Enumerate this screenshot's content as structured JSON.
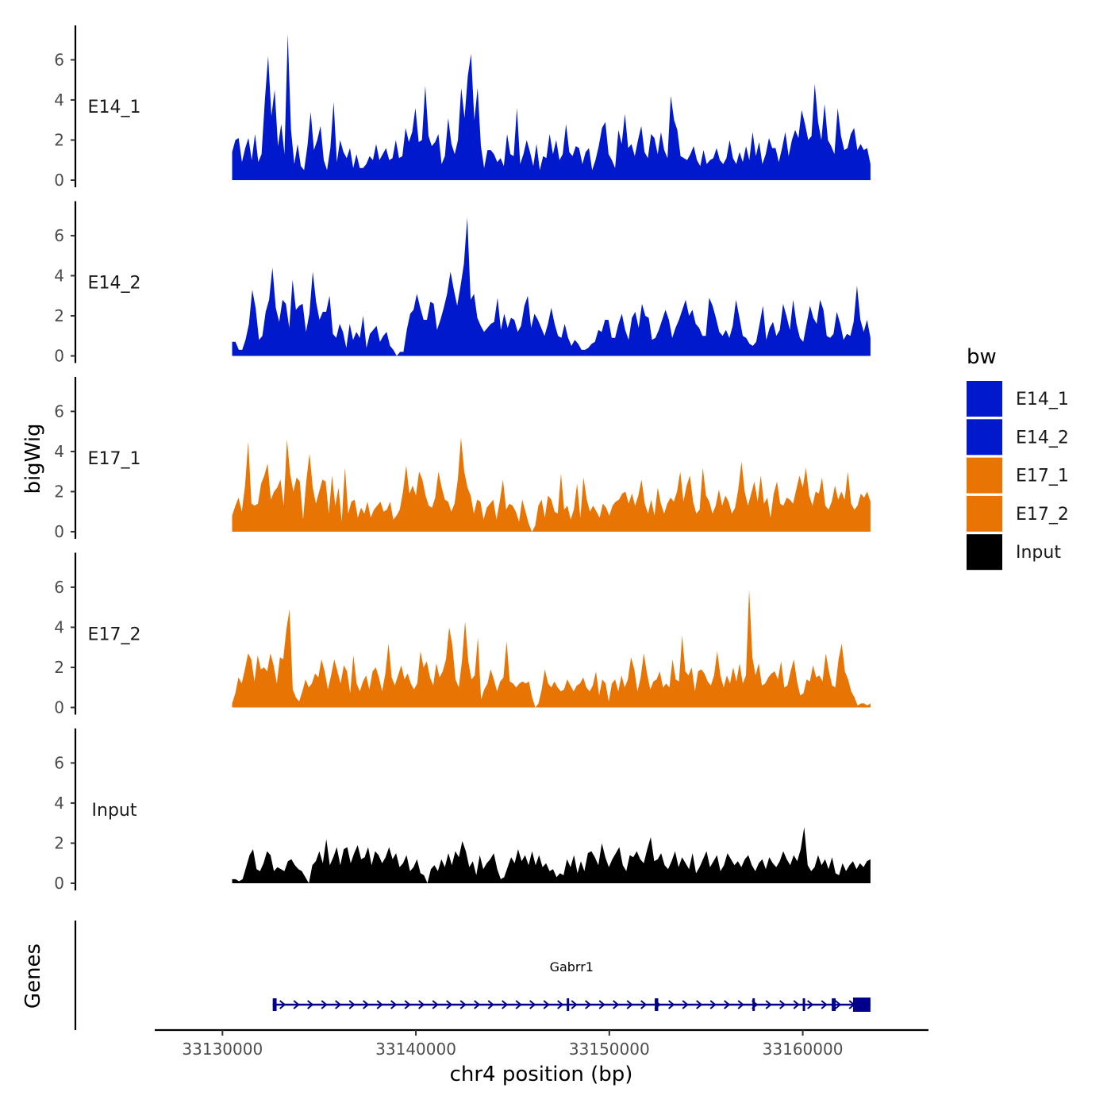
{
  "chart_data": {
    "type": "area",
    "description_title": "",
    "xlabel": "chr4 position (bp)",
    "ylabel": "bigWig",
    "genes_label": "Genes",
    "xlim": [
      33126500,
      33166500
    ],
    "ylim": [
      0,
      7.6
    ],
    "x_ticks": [
      33130000,
      33140000,
      33150000,
      33160000
    ],
    "y_ticks": [
      0,
      2,
      4,
      6
    ],
    "region": [
      33130500,
      33163500
    ],
    "series": [
      {
        "name": "E14_1",
        "color": "#0119CC",
        "values": [
          1.4,
          2.0,
          2.1,
          0.9,
          1.6,
          2.1,
          1.0,
          2.3,
          0.9,
          1.3,
          4.0,
          6.2,
          3.2,
          4.5,
          1.7,
          2.8,
          1.3,
          7.3,
          2.5,
          0.8,
          1.8,
          0.7,
          0.5,
          1.7,
          3.4,
          1.5,
          2.0,
          2.7,
          1.0,
          0.5,
          1.6,
          3.9,
          0.9,
          2.0,
          1.4,
          1.1,
          1.6,
          0.6,
          1.3,
          0.6,
          0.6,
          0.8,
          1.2,
          1.0,
          1.8,
          1.0,
          1.3,
          1.6,
          1.0,
          1.1,
          2.0,
          1.1,
          1.2,
          2.6,
          1.9,
          2.4,
          3.6,
          1.9,
          2.0,
          4.7,
          2.2,
          1.7,
          1.9,
          2.3,
          0.8,
          1.2,
          3.1,
          1.8,
          1.3,
          2.0,
          4.6,
          3.1,
          5.2,
          6.3,
          3.0,
          4.6,
          1.7,
          0.6,
          1.5,
          1.5,
          1.3,
          0.9,
          1.1,
          0.7,
          2.3,
          1.3,
          1.2,
          3.6,
          0.8,
          1.3,
          2.0,
          1.4,
          0.7,
          1.8,
          0.5,
          1.2,
          1.1,
          2.3,
          1.3,
          2.0,
          1.0,
          1.3,
          2.8,
          1.4,
          1.2,
          1.7,
          1.6,
          0.8,
          1.4,
          1.6,
          0.5,
          1.0,
          1.7,
          2.6,
          2.9,
          1.3,
          1.0,
          0.6,
          2.5,
          1.8,
          3.3,
          1.6,
          1.8,
          1.2,
          2.0,
          2.7,
          1.4,
          1.1,
          2.3,
          2.1,
          1.3,
          2.4,
          1.5,
          1.1,
          4.2,
          3.0,
          2.5,
          1.2,
          1.1,
          1.0,
          1.3,
          1.7,
          1.0,
          0.7,
          1.5,
          0.8,
          1.0,
          1.1,
          1.6,
          1.0,
          0.8,
          1.1,
          2.0,
          1.1,
          0.8,
          1.4,
          0.9,
          1.7,
          1.0,
          2.4,
          1.2,
          1.9,
          0.8,
          1.3,
          2.1,
          1.6,
          1.6,
          0.9,
          1.6,
          2.4,
          1.2,
          2.0,
          2.5,
          2.1,
          3.5,
          2.8,
          2.0,
          2.2,
          4.8,
          2.9,
          2.0,
          3.8,
          2.0,
          1.7,
          1.3,
          3.6,
          2.2,
          1.5,
          1.6,
          2.3,
          2.6,
          1.5,
          1.8,
          1.5,
          1.6,
          0.8
        ]
      },
      {
        "name": "E14_2",
        "color": "#0119CC",
        "values": [
          0.7,
          0.7,
          0.3,
          0.3,
          0.8,
          1.6,
          3.3,
          2.4,
          0.8,
          1.0,
          2.2,
          2.8,
          4.4,
          2.4,
          1.7,
          2.8,
          2.6,
          1.4,
          3.8,
          2.3,
          2.5,
          2.6,
          1.2,
          2.1,
          4.2,
          2.7,
          1.8,
          2.2,
          2.2,
          3.0,
          1.1,
          0.9,
          1.6,
          1.2,
          0.4,
          1.6,
          0.8,
          1.2,
          0.9,
          2.0,
          0.4,
          1.1,
          1.3,
          1.5,
          0.7,
          1.0,
          1.2,
          0.5,
          0.3,
          0.0,
          0.2,
          0.2,
          1.3,
          2.1,
          2.3,
          3.1,
          2.4,
          1.8,
          1.8,
          2.7,
          2.6,
          1.3,
          1.8,
          2.4,
          3.1,
          4.2,
          3.3,
          2.5,
          3.5,
          4.6,
          6.9,
          2.8,
          3.1,
          1.9,
          1.5,
          1.2,
          1.4,
          1.6,
          1.7,
          2.9,
          1.3,
          2.1,
          1.4,
          1.9,
          1.8,
          1.2,
          1.5,
          2.5,
          3.0,
          1.4,
          2.1,
          1.8,
          1.4,
          1.0,
          1.6,
          2.4,
          1.6,
          1.0,
          0.9,
          1.6,
          0.9,
          0.5,
          0.8,
          0.6,
          0.3,
          0.3,
          0.4,
          0.6,
          0.7,
          1.3,
          1.2,
          1.8,
          1.8,
          0.9,
          0.9,
          1.6,
          2.1,
          1.3,
          0.8,
          1.9,
          2.2,
          1.4,
          2.6,
          2.0,
          1.9,
          0.8,
          0.9,
          1.3,
          1.8,
          2.3,
          1.8,
          0.9,
          1.4,
          1.8,
          2.3,
          2.8,
          2.0,
          2.3,
          1.6,
          1.4,
          1.0,
          1.0,
          2.9,
          2.5,
          1.9,
          1.2,
          1.0,
          1.3,
          0.9,
          1.5,
          2.8,
          1.9,
          1.0,
          0.9,
          0.6,
          0.5,
          0.7,
          1.6,
          2.5,
          0.8,
          1.4,
          1.7,
          1.0,
          1.3,
          2.6,
          2.0,
          1.3,
          2.8,
          1.6,
          0.9,
          0.7,
          1.6,
          2.5,
          1.9,
          1.6,
          2.8,
          2.3,
          1.0,
          0.9,
          1.1,
          2.2,
          1.6,
          0.8,
          1.1,
          1.0,
          1.7,
          3.5,
          1.8,
          1.2,
          1.8,
          0.9
        ]
      },
      {
        "name": "E17_1",
        "color": "#E87503",
        "values": [
          0.8,
          1.3,
          1.7,
          1.0,
          2.3,
          4.5,
          1.4,
          1.3,
          1.4,
          2.4,
          2.8,
          3.4,
          1.6,
          2.0,
          2.2,
          2.6,
          1.3,
          4.6,
          2.9,
          2.0,
          2.7,
          2.5,
          0.6,
          2.5,
          3.9,
          2.2,
          1.4,
          2.0,
          2.6,
          2.5,
          0.9,
          2.8,
          1.3,
          2.2,
          0.5,
          3.2,
          0.9,
          1.5,
          1.6,
          0.7,
          1.2,
          0.9,
          1.5,
          0.7,
          1.1,
          1.3,
          1.5,
          1.0,
          1.1,
          1.5,
          0.6,
          0.8,
          1.1,
          2.0,
          3.3,
          1.9,
          2.3,
          1.8,
          3.0,
          2.6,
          1.8,
          1.3,
          1.2,
          1.7,
          3.0,
          2.2,
          1.6,
          1.5,
          1.0,
          1.4,
          2.6,
          4.7,
          3.0,
          2.2,
          1.8,
          0.9,
          1.6,
          1.5,
          0.6,
          1.2,
          1.4,
          1.6,
          0.6,
          1.5,
          2.6,
          1.1,
          1.4,
          1.3,
          1.0,
          0.5,
          1.6,
          1.0,
          0.4,
          0.0,
          0.3,
          1.3,
          1.6,
          0.7,
          1.8,
          1.6,
          1.0,
          0.9,
          2.9,
          1.1,
          1.3,
          0.6,
          1.1,
          2.4,
          0.7,
          2.7,
          1.6,
          1.0,
          1.3,
          1.0,
          0.7,
          1.4,
          1.2,
          0.8,
          1.3,
          1.5,
          1.6,
          1.9,
          2.0,
          1.4,
          1.9,
          1.3,
          1.8,
          2.6,
          1.4,
          0.9,
          1.6,
          0.8,
          2.2,
          1.4,
          0.9,
          1.4,
          1.7,
          1.5,
          2.0,
          3.0,
          1.5,
          2.3,
          2.8,
          1.5,
          0.9,
          1.1,
          3.2,
          1.8,
          1.5,
          0.9,
          1.3,
          2.1,
          1.3,
          1.8,
          1.5,
          0.9,
          1.2,
          2.1,
          3.5,
          2.0,
          1.3,
          1.9,
          2.5,
          1.5,
          2.8,
          1.4,
          1.7,
          0.7,
          1.9,
          2.5,
          1.4,
          1.3,
          1.7,
          1.6,
          1.4,
          2.1,
          2.8,
          2.2,
          3.2,
          1.8,
          1.3,
          2.0,
          1.9,
          2.7,
          1.3,
          1.1,
          1.5,
          2.3,
          1.6,
          2.0,
          1.6,
          3.0,
          1.4,
          1.1,
          1.3,
          1.9,
          1.7,
          2.0,
          1.5
        ]
      },
      {
        "name": "E17_2",
        "color": "#E87503",
        "values": [
          0.2,
          0.7,
          1.5,
          1.2,
          1.9,
          2.7,
          2.4,
          1.3,
          2.6,
          1.9,
          2.0,
          1.8,
          2.7,
          2.1,
          1.2,
          2.5,
          2.4,
          3.9,
          4.9,
          0.9,
          0.5,
          0.3,
          0.8,
          1.4,
          1.0,
          1.2,
          1.7,
          1.5,
          2.4,
          1.8,
          0.9,
          1.6,
          2.4,
          1.8,
          1.2,
          2.1,
          1.8,
          0.7,
          2.6,
          1.2,
          0.8,
          1.3,
          1.6,
          0.9,
          1.8,
          2.0,
          1.5,
          0.8,
          1.7,
          3.2,
          1.5,
          1.1,
          1.6,
          2.1,
          1.4,
          1.7,
          1.2,
          0.9,
          1.2,
          2.8,
          2.0,
          2.3,
          1.5,
          1.1,
          2.2,
          1.5,
          1.8,
          2.4,
          4.0,
          3.1,
          1.4,
          1.0,
          2.3,
          4.3,
          2.3,
          1.4,
          1.6,
          3.5,
          0.4,
          0.9,
          1.2,
          1.9,
          1.4,
          0.8,
          1.3,
          1.5,
          3.3,
          1.3,
          1.2,
          1.0,
          1.2,
          1.3,
          1.2,
          1.3,
          0.5,
          0.0,
          0.2,
          0.9,
          1.9,
          1.2,
          1.0,
          1.3,
          1.0,
          0.8,
          0.9,
          1.4,
          1.1,
          0.8,
          1.1,
          1.2,
          1.5,
          1.0,
          0.8,
          1.1,
          1.8,
          0.6,
          1.4,
          1.2,
          0.3,
          1.2,
          1.4,
          0.8,
          1.6,
          1.0,
          1.4,
          2.5,
          1.9,
          0.8,
          1.5,
          2.7,
          1.7,
          0.9,
          1.3,
          1.4,
          1.8,
          1.0,
          1.2,
          1.0,
          2.4,
          1.4,
          1.3,
          3.6,
          1.8,
          1.6,
          2.0,
          0.8,
          1.8,
          1.9,
          1.7,
          1.3,
          1.1,
          1.6,
          2.8,
          1.6,
          1.0,
          1.6,
          1.2,
          2.0,
          1.3,
          2.2,
          1.2,
          1.6,
          5.9,
          2.5,
          1.6,
          2.2,
          1.1,
          1.2,
          1.5,
          1.7,
          1.8,
          1.4,
          2.3,
          1.0,
          1.1,
          1.8,
          2.4,
          1.3,
          0.6,
          0.7,
          1.4,
          1.3,
          2.1,
          1.5,
          1.6,
          1.3,
          2.7,
          1.8,
          1.1,
          1.0,
          2.4,
          3.2,
          1.8,
          1.4,
          0.8,
          0.5,
          0.1,
          0.2,
          0.2,
          0.1,
          0.2
        ]
      },
      {
        "name": "Input",
        "color": "#000000",
        "values": [
          0.2,
          0.2,
          0.1,
          0.2,
          0.8,
          1.4,
          1.7,
          0.7,
          0.6,
          1.0,
          1.6,
          1.4,
          0.6,
          0.8,
          0.7,
          0.6,
          1.1,
          1.2,
          0.9,
          0.7,
          0.6,
          0.3,
          0.0,
          0.9,
          1.1,
          1.6,
          1.0,
          2.2,
          0.9,
          1.3,
          1.8,
          0.9,
          1.7,
          1.8,
          1.0,
          1.5,
          1.9,
          1.2,
          1.3,
          1.8,
          0.9,
          1.6,
          1.4,
          1.0,
          1.3,
          1.8,
          1.2,
          1.5,
          0.8,
          1.0,
          1.4,
          0.6,
          0.8,
          1.2,
          0.5,
          0.4,
          0.0,
          0.7,
          0.9,
          0.6,
          1.2,
          0.8,
          1.5,
          0.9,
          1.6,
          1.3,
          2.1,
          1.6,
          0.8,
          1.1,
          0.4,
          1.4,
          0.7,
          1.0,
          1.2,
          1.5,
          0.7,
          0.2,
          0.3,
          0.8,
          1.3,
          1.0,
          1.7,
          1.1,
          1.4,
          0.9,
          1.6,
          0.9,
          1.4,
          0.8,
          1.0,
          0.6,
          0.7,
          0.3,
          0.5,
          0.4,
          1.2,
          0.8,
          1.4,
          0.5,
          1.1,
          0.6,
          1.5,
          1.6,
          1.3,
          0.9,
          2.0,
          1.3,
          0.8,
          1.2,
          1.5,
          1.8,
          0.9,
          0.6,
          1.4,
          1.3,
          1.6,
          1.2,
          1.0,
          1.7,
          2.3,
          1.1,
          1.2,
          1.5,
          0.9,
          0.7,
          1.1,
          1.6,
          0.8,
          1.3,
          1.0,
          0.7,
          1.5,
          0.5,
          0.8,
          1.2,
          1.6,
          0.8,
          1.1,
          1.4,
          0.6,
          0.9,
          1.5,
          1.2,
          0.9,
          1.1,
          0.8,
          1.2,
          1.4,
          0.9,
          0.6,
          1.0,
          1.2,
          0.7,
          1.3,
          1.0,
          0.8,
          1.1,
          1.6,
          1.2,
          0.9,
          1.4,
          1.1,
          1.7,
          2.8,
          0.9,
          0.6,
          0.8,
          1.4,
          0.9,
          1.2,
          0.7,
          1.3,
          0.5,
          0.4,
          1.0,
          0.6,
          0.9,
          1.1,
          0.7,
          1.0,
          0.8,
          1.1,
          1.2
        ]
      }
    ],
    "genes": [
      {
        "name": "Gabrr1",
        "start": 33132600,
        "end": 33163500,
        "strand": "+",
        "exons": [
          [
            33132600,
            33132800
          ],
          [
            33147800,
            33147870
          ],
          [
            33152350,
            33152530
          ],
          [
            33157400,
            33157480
          ],
          [
            33160000,
            33160080
          ],
          [
            33161500,
            33161700
          ],
          [
            33162600,
            33163500
          ]
        ],
        "color": "#00008B"
      }
    ],
    "legend": {
      "title": "bw",
      "placement": "right",
      "entries": [
        {
          "label": "E14_1",
          "color": "#0119CC"
        },
        {
          "label": "E14_2",
          "color": "#0119CC"
        },
        {
          "label": "E17_1",
          "color": "#E87503"
        },
        {
          "label": "E17_2",
          "color": "#E87503"
        },
        {
          "label": "Input",
          "color": "#000000"
        }
      ]
    }
  }
}
